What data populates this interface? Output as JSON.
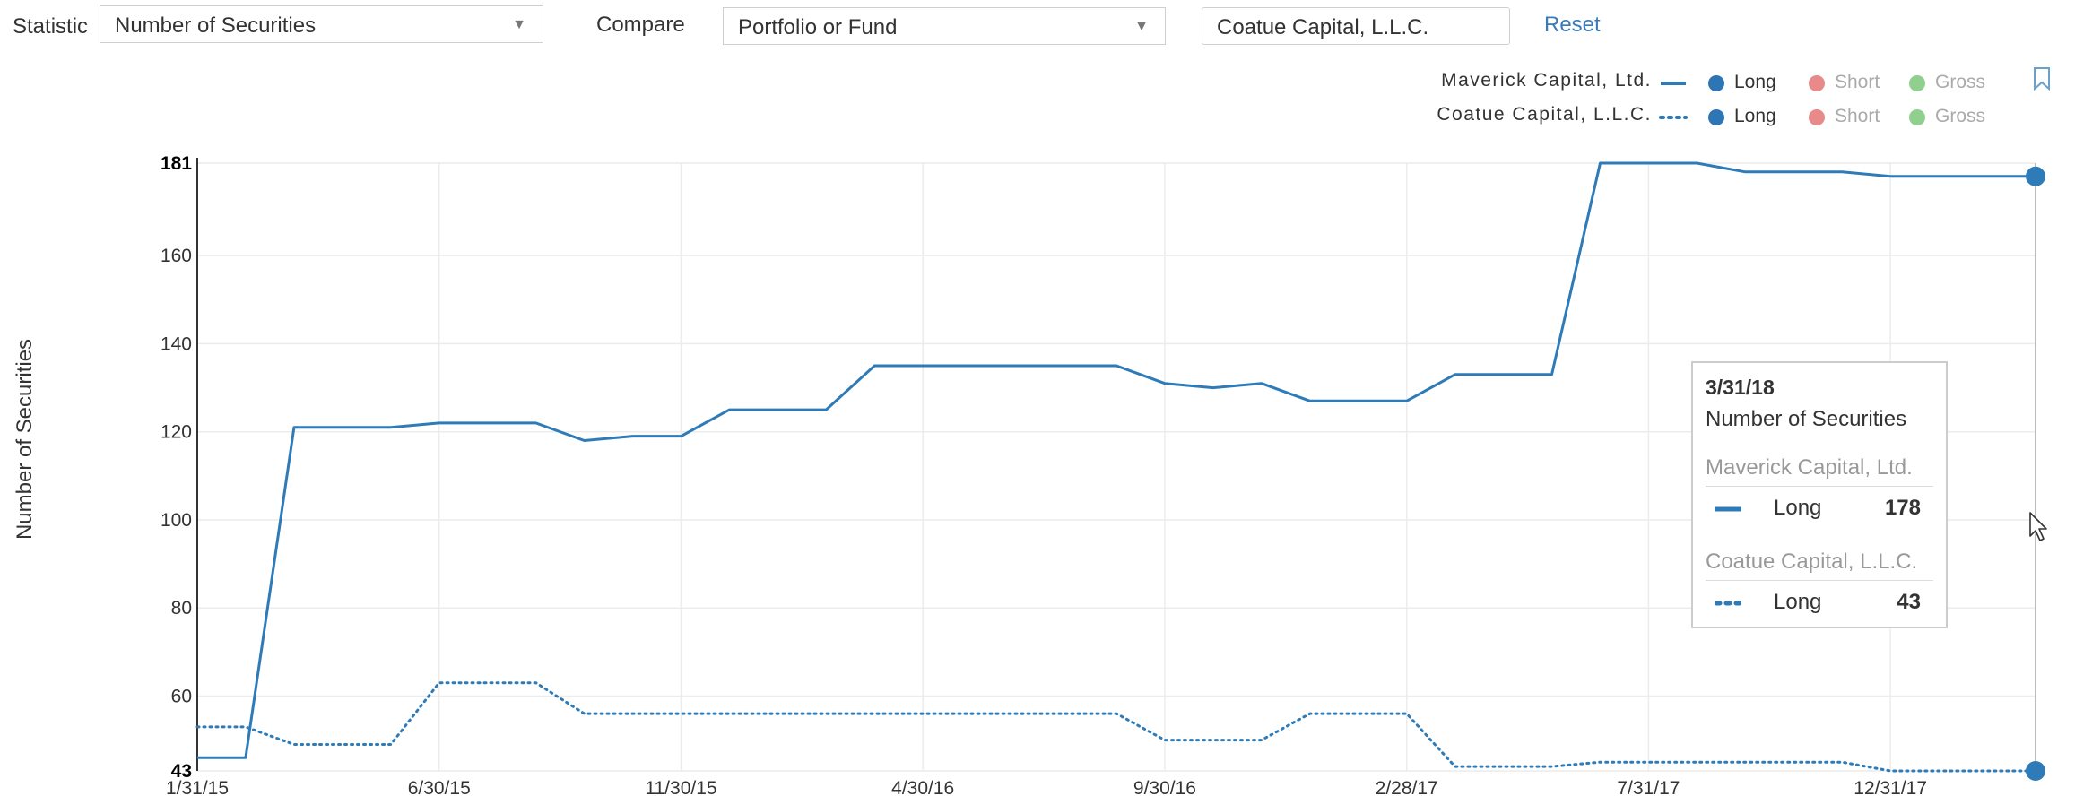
{
  "controls": {
    "statistic_label": "Statistic",
    "statistic_value": "Number of Securities",
    "compare_label": "Compare",
    "compare_value": "Portfolio or Fund",
    "fund_input_value": "Coatue Capital, L.L.C.",
    "reset_label": "Reset"
  },
  "legend": [
    {
      "name": "Maverick Capital, Ltd.",
      "style": "solid",
      "items": [
        {
          "label": "Long",
          "active": true
        },
        {
          "label": "Short",
          "active": false
        },
        {
          "label": "Gross",
          "active": false
        }
      ]
    },
    {
      "name": "Coatue Capital, L.L.C.",
      "style": "dotted",
      "items": [
        {
          "label": "Long",
          "active": true
        },
        {
          "label": "Short",
          "active": false
        },
        {
          "label": "Gross",
          "active": false
        }
      ]
    }
  ],
  "colors": {
    "long": "#2e75b6",
    "short": "#e8898a",
    "gross": "#8fd08f",
    "series": "#2e7bb8"
  },
  "tooltip": {
    "date": "3/31/18",
    "statistic": "Number of Securities",
    "rows": [
      {
        "fund": "Maverick Capital, Ltd.",
        "label": "Long",
        "value": "178"
      },
      {
        "fund": "Coatue Capital, L.L.C.",
        "label": "Long",
        "value": "43"
      }
    ]
  },
  "chart_data": {
    "type": "line",
    "title": "",
    "ylabel": "Number of Securities",
    "xlabel": "",
    "ylim": [
      43,
      181
    ],
    "yticks": [
      43,
      60,
      80,
      100,
      120,
      140,
      160,
      181
    ],
    "xtick_labels": [
      "1/31/15",
      "6/30/15",
      "11/30/15",
      "4/30/16",
      "9/30/16",
      "2/28/17",
      "7/31/17",
      "12/31/17"
    ],
    "x": [
      "1/31/15",
      "2/28/15",
      "3/31/15",
      "4/30/15",
      "5/31/15",
      "6/30/15",
      "7/31/15",
      "8/31/15",
      "9/30/15",
      "10/31/15",
      "11/30/15",
      "12/31/15",
      "1/31/16",
      "2/29/16",
      "3/31/16",
      "4/30/16",
      "5/31/16",
      "6/30/16",
      "7/31/16",
      "8/31/16",
      "9/30/16",
      "10/31/16",
      "11/30/16",
      "12/31/16",
      "1/31/17",
      "2/28/17",
      "3/31/17",
      "4/30/17",
      "5/31/17",
      "6/30/17",
      "7/31/17",
      "8/31/17",
      "9/30/17",
      "10/31/17",
      "11/30/17",
      "12/31/17",
      "1/31/18",
      "2/28/18",
      "3/31/18"
    ],
    "series": [
      {
        "name": "Maverick Capital, Ltd.",
        "style": "solid",
        "values": [
          46,
          46,
          121,
          121,
          121,
          122,
          122,
          122,
          118,
          119,
          119,
          125,
          125,
          125,
          135,
          135,
          135,
          135,
          135,
          135,
          131,
          130,
          131,
          127,
          127,
          127,
          133,
          133,
          133,
          181,
          181,
          181,
          179,
          179,
          179,
          178,
          178,
          178,
          178
        ]
      },
      {
        "name": "Coatue Capital, L.L.C.",
        "style": "dotted",
        "values": [
          53,
          53,
          49,
          49,
          49,
          63,
          63,
          63,
          56,
          56,
          56,
          56,
          56,
          56,
          56,
          56,
          56,
          56,
          56,
          56,
          50,
          50,
          50,
          56,
          56,
          56,
          44,
          44,
          44,
          45,
          45,
          45,
          45,
          45,
          45,
          43,
          43,
          43,
          43
        ]
      }
    ]
  }
}
